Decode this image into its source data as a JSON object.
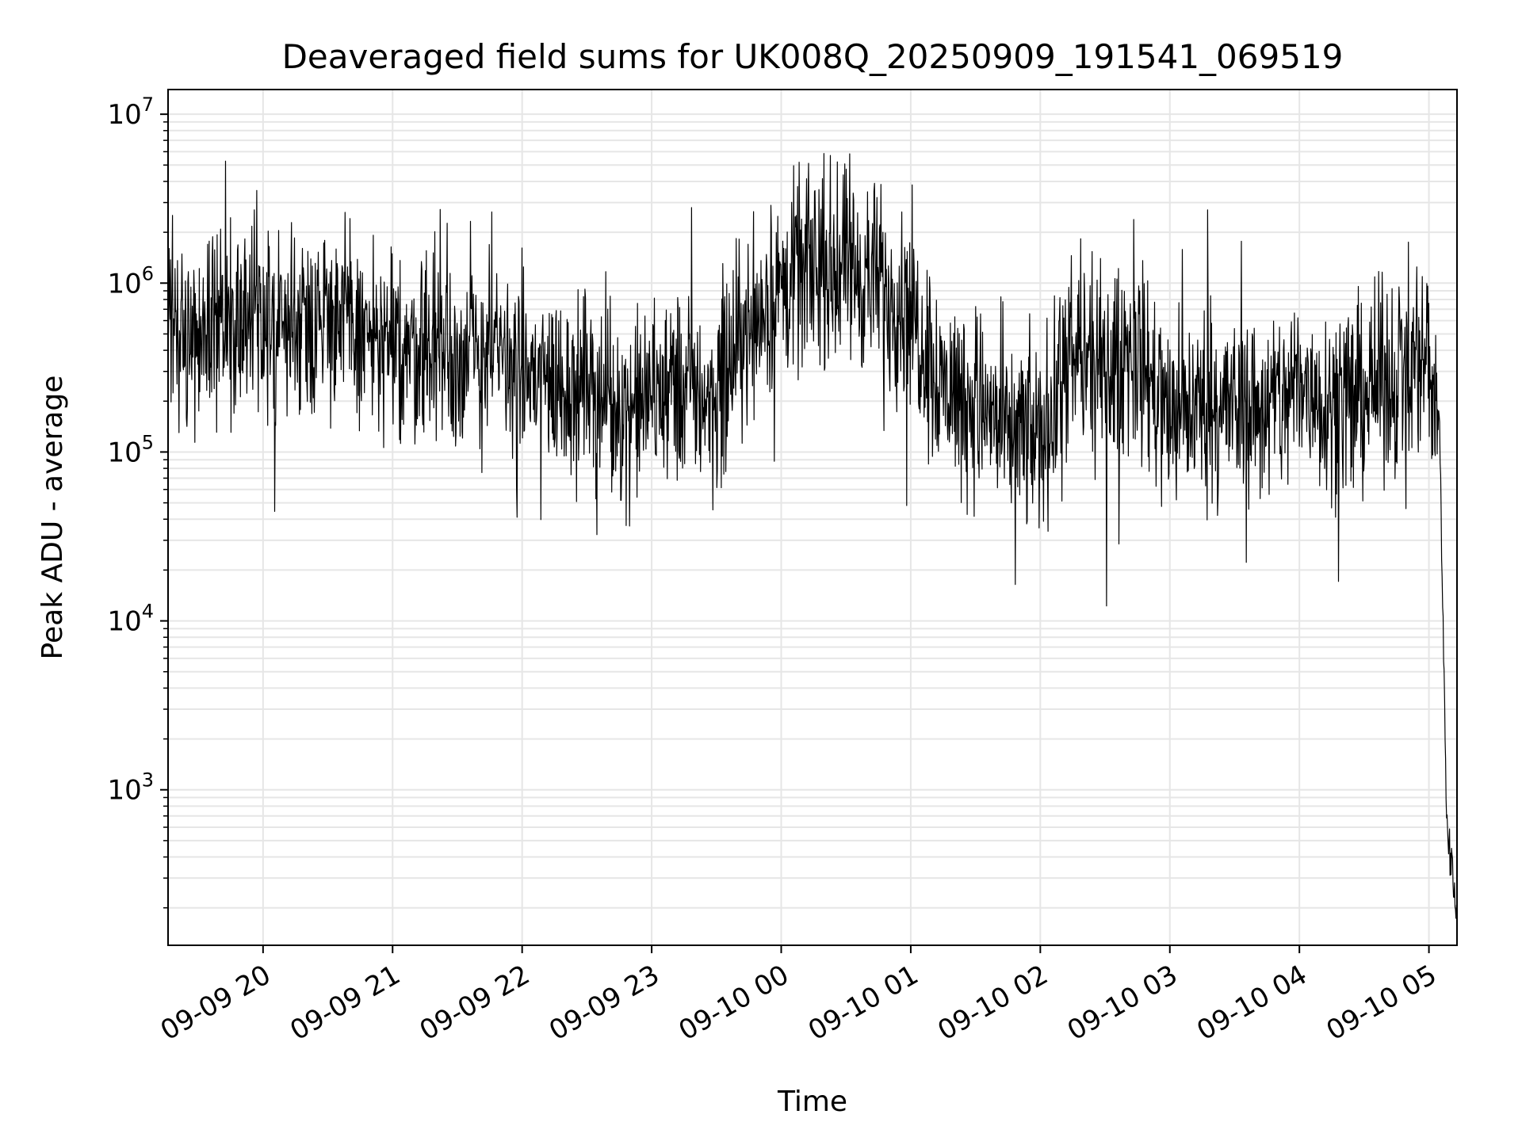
{
  "chart_data": {
    "type": "line",
    "title": "Deaveraged field sums for UK008Q_20250909_191541_069519",
    "xlabel": "Time",
    "ylabel": "Peak ADU - average",
    "yscale": "log",
    "ylim": [
      120,
      14000000
    ],
    "xlim": [
      "2025-09-09 19:16",
      "2025-09-10 05:13"
    ],
    "x_ticks": [
      "09-09 20",
      "09-09 21",
      "09-09 22",
      "09-09 23",
      "09-10 00",
      "09-10 01",
      "09-10 02",
      "09-10 03",
      "09-10 04",
      "09-10 05"
    ],
    "y_ticks": [
      {
        "base": "10",
        "exp": "3"
      },
      {
        "base": "10",
        "exp": "4"
      },
      {
        "base": "10",
        "exp": "5"
      },
      {
        "base": "10",
        "exp": "6"
      },
      {
        "base": "10",
        "exp": "7"
      }
    ],
    "grid": true,
    "line_color": "#000000",
    "series": [
      {
        "x": [
          "2025-09-09 19:16",
          "2025-09-09 19:30",
          "2025-09-09 19:45",
          "2025-09-09 20:00",
          "2025-09-09 20:15",
          "2025-09-09 20:30",
          "2025-09-09 20:45",
          "2025-09-09 21:00",
          "2025-09-09 21:15",
          "2025-09-09 21:30",
          "2025-09-09 21:45",
          "2025-09-09 22:00",
          "2025-09-09 22:15",
          "2025-09-09 22:30",
          "2025-09-09 22:45",
          "2025-09-09 23:00",
          "2025-09-09 23:15",
          "2025-09-09 23:30",
          "2025-09-09 23:45",
          "2025-09-10 00:00",
          "2025-09-10 00:15",
          "2025-09-10 00:30",
          "2025-09-10 00:45",
          "2025-09-10 01:00",
          "2025-09-10 01:15",
          "2025-09-10 01:30",
          "2025-09-10 01:45",
          "2025-09-10 02:00",
          "2025-09-10 02:15",
          "2025-09-10 02:30",
          "2025-09-10 02:45",
          "2025-09-10 03:00",
          "2025-09-10 03:15",
          "2025-09-10 03:30",
          "2025-09-10 03:45",
          "2025-09-10 04:00",
          "2025-09-10 04:15",
          "2025-09-10 04:30",
          "2025-09-10 04:45",
          "2025-09-10 05:00",
          "2025-09-10 05:03",
          "2025-09-10 05:05",
          "2025-09-10 05:06",
          "2025-09-10 05:07",
          "2025-09-10 05:08",
          "2025-09-10 05:09",
          "2025-09-10 05:10",
          "2025-09-10 05:11",
          "2025-09-10 05:12",
          "2025-09-10 05:13"
        ],
        "values": [
          600000,
          550000,
          700000,
          500000,
          650000,
          700000,
          500000,
          400000,
          450000,
          350000,
          400000,
          300000,
          250000,
          270000,
          180000,
          200000,
          250000,
          200000,
          600000,
          900000,
          1300000,
          1200000,
          1000000,
          700000,
          250000,
          200000,
          130000,
          120000,
          350000,
          300000,
          400000,
          150000,
          200000,
          180000,
          180000,
          250000,
          200000,
          230000,
          280000,
          400000,
          180000,
          140000,
          20000,
          6000,
          800,
          500,
          400,
          300,
          250,
          220
        ]
      }
    ]
  }
}
